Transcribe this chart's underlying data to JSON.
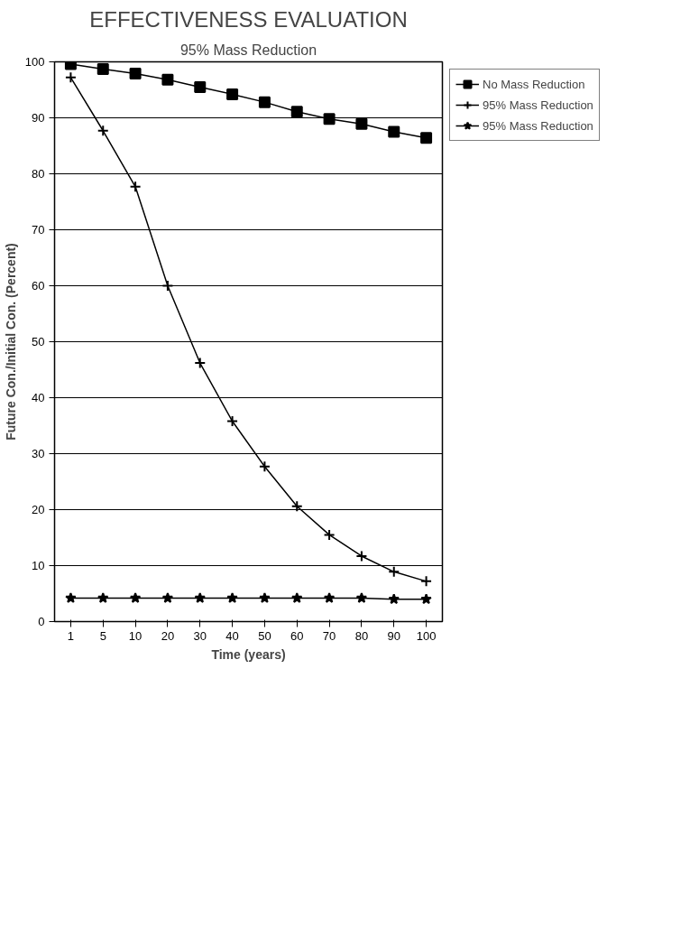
{
  "chart_data": {
    "type": "line",
    "title": "EFFECTIVENESS EVALUATION",
    "subtitle": "95% Mass Reduction",
    "xlabel": "Time (years)",
    "ylabel": "Future Con./Initial Con. (Percent)",
    "categories": [
      "1",
      "5",
      "10",
      "20",
      "30",
      "40",
      "50",
      "60",
      "70",
      "80",
      "90",
      "100"
    ],
    "series": [
      {
        "name": "No Mass Reduction",
        "color": "#000000",
        "marker": "square",
        "values": [
          99.6,
          98.7,
          97.9,
          96.8,
          95.5,
          94.2,
          92.8,
          91.1,
          89.8,
          88.9,
          87.5,
          86.4
        ]
      },
      {
        "name": "95% Mass Reduction",
        "color": "#000000",
        "marker": "cross",
        "values": [
          97.2,
          87.7,
          77.7,
          60,
          46.2,
          35.8,
          27.7,
          20.6,
          15.5,
          11.7,
          8.9,
          7.2
        ]
      },
      {
        "name": "95% Mass Reduction",
        "color": "#000000",
        "marker": "star",
        "values": [
          4.2,
          4.2,
          4.2,
          4.2,
          4.2,
          4.2,
          4.2,
          4.2,
          4.2,
          4.2,
          4.0,
          4.0
        ]
      }
    ],
    "ylim": [
      0,
      100
    ],
    "yticks": [
      0,
      10,
      20,
      30,
      40,
      50,
      60,
      70,
      80,
      90,
      100
    ],
    "grid": "y",
    "legend": "right",
    "line_style": "solid"
  }
}
